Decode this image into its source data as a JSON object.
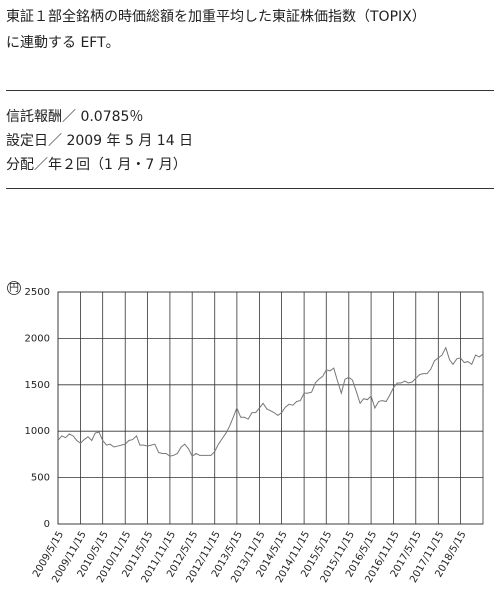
{
  "description": [
    "東証１部全銘柄の時価総額を加重平均した東証株価指数（TOPIX）",
    "に連動する EFT。"
  ],
  "details": [
    "信託報酬／ 0.0785％",
    "設定日／ 2009 年 5 月 14 日",
    "分配／年２回（1 月・7 月）"
  ],
  "chart_data": {
    "type": "line",
    "y_label": "円",
    "xlim": [
      "2009/5/15",
      "2018/11/15"
    ],
    "xticks": [
      "2009/5/15",
      "2009/11/15",
      "2010/5/15",
      "2010/11/15",
      "2011/5/15",
      "2011/11/15",
      "2012/5/15",
      "2012/11/15",
      "2013/5/15",
      "2013/11/15",
      "2014/5/15",
      "2014/11/15",
      "2015/5/15",
      "2015/11/15",
      "2016/5/15",
      "2016/11/15",
      "2017/5/15",
      "2017/11/15",
      "2018/5/15"
    ],
    "ylim": [
      0,
      2500
    ],
    "yticks": [
      0,
      500,
      1000,
      1500,
      2000,
      2500
    ],
    "grid": true,
    "x": [
      "2009/5/15",
      "2009/6/15",
      "2009/7/15",
      "2009/8/15",
      "2009/9/15",
      "2009/10/15",
      "2009/11/15",
      "2009/12/15",
      "2010/1/15",
      "2010/2/15",
      "2010/3/15",
      "2010/4/15",
      "2010/5/15",
      "2010/6/15",
      "2010/7/15",
      "2010/8/15",
      "2010/9/15",
      "2010/10/15",
      "2010/11/15",
      "2010/12/15",
      "2011/1/15",
      "2011/2/15",
      "2011/3/15",
      "2011/4/15",
      "2011/5/15",
      "2011/6/15",
      "2011/7/15",
      "2011/8/15",
      "2011/9/15",
      "2011/10/15",
      "2011/11/15",
      "2011/12/15",
      "2012/1/15",
      "2012/2/15",
      "2012/3/15",
      "2012/4/15",
      "2012/5/15",
      "2012/6/15",
      "2012/7/15",
      "2012/8/15",
      "2012/9/15",
      "2012/10/15",
      "2012/11/15",
      "2012/12/15",
      "2013/1/15",
      "2013/2/15",
      "2013/3/15",
      "2013/4/15",
      "2013/5/15",
      "2013/6/15",
      "2013/7/15",
      "2013/8/15",
      "2013/9/15",
      "2013/10/15",
      "2013/11/15",
      "2013/12/15",
      "2014/1/15",
      "2014/2/15",
      "2014/3/15",
      "2014/4/15",
      "2014/5/15",
      "2014/6/15",
      "2014/7/15",
      "2014/8/15",
      "2014/9/15",
      "2014/10/15",
      "2014/11/15",
      "2014/12/15",
      "2015/1/15",
      "2015/2/15",
      "2015/3/15",
      "2015/4/15",
      "2015/5/15",
      "2015/6/15",
      "2015/7/15",
      "2015/8/15",
      "2015/9/15",
      "2015/10/15",
      "2015/11/15",
      "2015/12/15",
      "2016/1/15",
      "2016/2/15",
      "2016/3/15",
      "2016/4/15",
      "2016/5/15",
      "2016/6/15",
      "2016/7/15",
      "2016/8/15",
      "2016/9/15",
      "2016/10/15",
      "2016/11/15",
      "2016/12/15",
      "2017/1/15",
      "2017/2/15",
      "2017/3/15",
      "2017/4/15",
      "2017/5/15",
      "2017/6/15",
      "2017/7/15",
      "2017/8/15",
      "2017/9/15",
      "2017/10/15",
      "2017/11/15",
      "2017/12/15",
      "2018/1/15",
      "2018/2/15",
      "2018/3/15",
      "2018/4/15",
      "2018/5/15",
      "2018/6/15",
      "2018/7/15",
      "2018/8/15",
      "2018/9/15",
      "2018/10/15",
      "2018/11/15"
    ],
    "series": [
      {
        "color": "#777777",
        "values": [
          900,
          950,
          930,
          970,
          950,
          900,
          870,
          910,
          940,
          900,
          980,
          990,
          900,
          850,
          860,
          830,
          840,
          850,
          860,
          900,
          910,
          950,
          850,
          850,
          840,
          850,
          860,
          770,
          760,
          760,
          730,
          740,
          760,
          830,
          860,
          810,
          730,
          760,
          740,
          740,
          740,
          740,
          780,
          860,
          920,
          980,
          1050,
          1150,
          1250,
          1150,
          1150,
          1130,
          1200,
          1200,
          1250,
          1300,
          1240,
          1220,
          1200,
          1170,
          1200,
          1260,
          1290,
          1280,
          1320,
          1330,
          1410,
          1410,
          1420,
          1520,
          1560,
          1590,
          1660,
          1650,
          1680,
          1540,
          1410,
          1560,
          1580,
          1550,
          1430,
          1300,
          1350,
          1340,
          1380,
          1250,
          1320,
          1330,
          1320,
          1390,
          1470,
          1520,
          1520,
          1540,
          1520,
          1530,
          1570,
          1610,
          1620,
          1620,
          1670,
          1760,
          1790,
          1820,
          1900,
          1770,
          1720,
          1780,
          1790,
          1740,
          1750,
          1720,
          1820,
          1800,
          1830
        ]
      }
    ]
  }
}
